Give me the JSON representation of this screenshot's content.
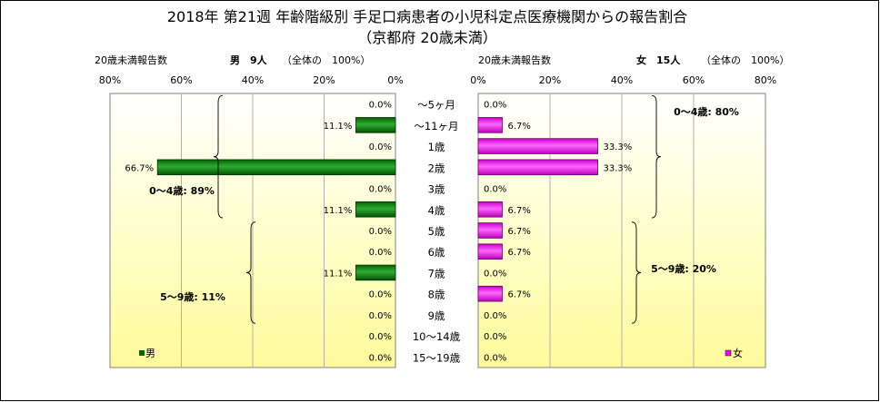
{
  "title": "2018年 第21週 年齢階級別 手足口病患者の小児科定点医療機関からの報告割合",
  "subtitle": "（京都府 20歳未満）",
  "colors": {
    "male": "#006600",
    "female": "#ff00ff",
    "border": "#808080"
  },
  "chart_data": {
    "type": "bar",
    "orientation": "horizontal",
    "layout": "population-pyramid",
    "categories": [
      "～5ヶ月",
      "～11ヶ月",
      "1歳",
      "2歳",
      "3歳",
      "4歳",
      "5歳",
      "6歳",
      "7歳",
      "8歳",
      "9歳",
      "10～14歳",
      "15～19歳"
    ],
    "xlim": [
      0,
      80
    ],
    "x_ticks": [
      "80%",
      "60%",
      "40%",
      "20%",
      "0%"
    ],
    "x_ticks_right": [
      "0%",
      "20%",
      "40%",
      "60%",
      "80%"
    ],
    "grid": "vertical",
    "series": [
      {
        "name": "男",
        "side": "left",
        "header_label": "20歳未満報告数",
        "header_count": "男　9人",
        "header_total": "（全体の　100%）",
        "values": [
          0,
          11.1,
          0,
          66.7,
          0,
          11.1,
          0,
          0,
          11.1,
          0,
          0,
          0,
          0
        ],
        "labels": [
          "0.0%",
          "11.1%",
          "0.0%",
          "66.7%",
          "0.0%",
          "11.1%",
          "0.0%",
          "0.0%",
          "11.1%",
          "0.0%",
          "0.0%",
          "0.0%",
          "0.0%"
        ],
        "groups": [
          {
            "label": "0～4歳: 89%",
            "from": 0,
            "to": 5
          },
          {
            "label": "5～9歳: 11%",
            "from": 6,
            "to": 10
          }
        ]
      },
      {
        "name": "女",
        "side": "right",
        "header_label": "20歳未満報告数",
        "header_count": "女　15人",
        "header_total": "（全体の　100%）",
        "values": [
          0,
          6.7,
          33.3,
          33.3,
          0,
          6.7,
          6.7,
          6.7,
          0,
          6.7,
          0,
          0,
          0
        ],
        "labels": [
          "0.0%",
          "6.7%",
          "33.3%",
          "33.3%",
          "0.0%",
          "6.7%",
          "6.7%",
          "6.7%",
          "0.0%",
          "6.7%",
          "0.0%",
          "0.0%",
          "0.0%"
        ],
        "groups": [
          {
            "label": "0～4歳: 80%",
            "from": 0,
            "to": 5
          },
          {
            "label": "5～9歳: 20%",
            "from": 6,
            "to": 10
          }
        ]
      }
    ]
  }
}
